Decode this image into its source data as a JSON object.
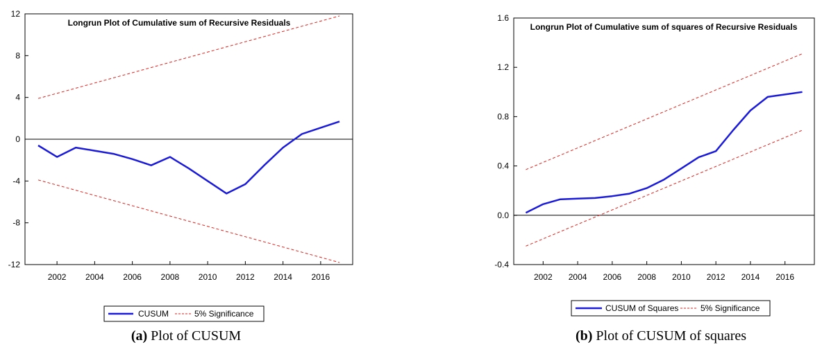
{
  "chart_data": [
    {
      "type": "line",
      "title": "Longrun Plot of Cumulative sum of Recursive Residuals",
      "caption": {
        "label": "(a)",
        "text": " Plot of CUSUM"
      },
      "x_tick_labels": [
        "2002",
        "2004",
        "2006",
        "2008",
        "2010",
        "2012",
        "2014",
        "2016"
      ],
      "y_tick_labels": [
        "12",
        "8",
        "4",
        "0",
        "-4",
        "-8",
        "-12"
      ],
      "ylim": [
        -12,
        12
      ],
      "xlim": [
        2000.3,
        2017.7
      ],
      "grid": false,
      "zero_line": true,
      "legend_position": "bottom-center",
      "legend": [
        "CUSUM",
        "5% Significance"
      ],
      "colors": {
        "main": "#1a1adb",
        "bounds": "#e0201a"
      },
      "series": [
        {
          "name": "CUSUM",
          "style": "solid",
          "x": [
            2001,
            2002,
            2003,
            2004,
            2005,
            2006,
            2007,
            2008,
            2009,
            2010,
            2011,
            2012,
            2013,
            2014,
            2015,
            2016,
            2017
          ],
          "values": [
            -0.6,
            -1.7,
            -0.8,
            -1.1,
            -1.4,
            -1.9,
            -2.5,
            -1.7,
            -2.8,
            -4.0,
            -5.2,
            -4.3,
            -2.5,
            -0.8,
            0.5,
            1.1,
            1.7
          ]
        },
        {
          "name": "5% Significance",
          "style": "dashed",
          "x": [
            2001,
            2017
          ],
          "values": [
            3.9,
            11.8
          ]
        },
        {
          "name": "5% Significance",
          "style": "dashed",
          "x": [
            2001,
            2017
          ],
          "values": [
            -3.9,
            -11.8
          ]
        }
      ]
    },
    {
      "type": "line",
      "title": "Longrun Plot of Cumulative sum of squares of Recursive Residuals",
      "caption": {
        "label": "(b)",
        "text": " Plot of CUSUM of squares"
      },
      "x_tick_labels": [
        "2002",
        "2004",
        "2006",
        "2008",
        "2010",
        "2012",
        "2014",
        "2016"
      ],
      "y_tick_labels": [
        "1.6",
        "1.2",
        "0.8",
        "0.4",
        "0.0",
        "-0.4"
      ],
      "ylim": [
        -0.4,
        1.6
      ],
      "xlim": [
        2000.3,
        2017.7
      ],
      "grid": false,
      "zero_line": true,
      "legend_position": "bottom-center",
      "legend": [
        "CUSUM of Squares",
        "5% Significance"
      ],
      "colors": {
        "main": "#1a1adb",
        "bounds": "#e0201a"
      },
      "series": [
        {
          "name": "CUSUM of Squares",
          "style": "solid",
          "x": [
            2001,
            2002,
            2003,
            2004,
            2005,
            2006,
            2007,
            2008,
            2009,
            2010,
            2011,
            2012,
            2013,
            2014,
            2015,
            2016,
            2017
          ],
          "values": [
            0.02,
            0.09,
            0.13,
            0.135,
            0.14,
            0.155,
            0.175,
            0.22,
            0.29,
            0.38,
            0.47,
            0.52,
            0.69,
            0.85,
            0.96,
            0.98,
            1.0
          ]
        },
        {
          "name": "5% Significance",
          "style": "dashed",
          "x": [
            2001,
            2017
          ],
          "values": [
            0.37,
            1.31
          ]
        },
        {
          "name": "5% Significance",
          "style": "dashed",
          "x": [
            2001,
            2017
          ],
          "values": [
            -0.25,
            0.69
          ]
        }
      ]
    }
  ]
}
